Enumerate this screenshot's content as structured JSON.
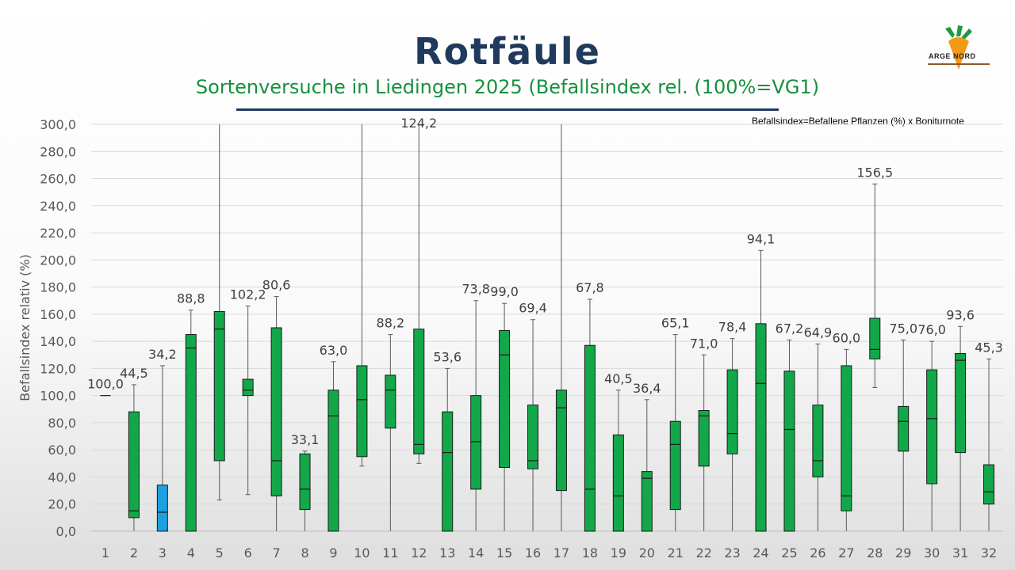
{
  "title": "Rotfäule",
  "subtitle": "Sortenversuche in Liedingen 2025 (Befallsindex rel. (100%=VG1)",
  "note": "Befallsindex=Befallene Pflanzen (%) x Boniturnote",
  "logo": {
    "text": "ARGE NORD",
    "icon": "carrot-logo-icon"
  },
  "colors": {
    "box": "#12a84a",
    "highlight": "#1ea0e0",
    "title": "#1f3a5c",
    "subtitle": "#17903f"
  },
  "chart_data": {
    "type": "boxplot",
    "ylabel": "Befallsindex relativ (%)",
    "xlabel": "",
    "ylim": [
      0,
      300
    ],
    "yticks": [
      "0,0",
      "20,0",
      "40,0",
      "60,0",
      "80,0",
      "100,0",
      "120,0",
      "140,0",
      "160,0",
      "180,0",
      "200,0",
      "220,0",
      "240,0",
      "260,0",
      "280,0",
      "300,0"
    ],
    "grid": true,
    "categories": [
      "1",
      "2",
      "3",
      "4",
      "5",
      "6",
      "7",
      "8",
      "9",
      "10",
      "11",
      "12",
      "13",
      "14",
      "15",
      "16",
      "17",
      "18",
      "19",
      "20",
      "21",
      "22",
      "23",
      "24",
      "25",
      "26",
      "27",
      "28",
      "29",
      "30",
      "31",
      "32"
    ],
    "highlight_category": "3",
    "boxes": [
      {
        "x": "1",
        "min": 100,
        "q1": 100,
        "median": 100,
        "q3": 100,
        "max": 100,
        "mean": "100,0"
      },
      {
        "x": "2",
        "min": 0,
        "q1": 10,
        "median": 15,
        "q3": 88,
        "max": 108,
        "mean": "44,5"
      },
      {
        "x": "3",
        "min": 0,
        "q1": 0,
        "median": 14,
        "q3": 34,
        "max": 122,
        "mean": "34,2"
      },
      {
        "x": "4",
        "min": 0,
        "q1": 0,
        "median": 135,
        "q3": 145,
        "max": 163,
        "mean": "88,8"
      },
      {
        "x": "5",
        "min": 23,
        "q1": 52,
        "median": 149,
        "q3": 162,
        "max": 300,
        "mean": ""
      },
      {
        "x": "6",
        "min": 27,
        "q1": 100,
        "median": 104,
        "q3": 112,
        "max": 166,
        "mean": "102,2"
      },
      {
        "x": "7",
        "min": 0,
        "q1": 26,
        "median": 52,
        "q3": 150,
        "max": 173,
        "mean": "80,6"
      },
      {
        "x": "8",
        "min": 0,
        "q1": 16,
        "median": 31,
        "q3": 57,
        "max": 59,
        "mean": "33,1"
      },
      {
        "x": "9",
        "min": 0,
        "q1": 0,
        "median": 85,
        "q3": 104,
        "max": 125,
        "mean": "63,0"
      },
      {
        "x": "10",
        "min": 48,
        "q1": 55,
        "median": 97,
        "q3": 122,
        "max": 300,
        "mean": ""
      },
      {
        "x": "11",
        "min": 0,
        "q1": 76,
        "median": 104,
        "q3": 115,
        "max": 145,
        "mean": "88,2"
      },
      {
        "x": "12",
        "min": 50,
        "q1": 57,
        "median": 64,
        "q3": 149,
        "max": 300,
        "mean": "124,2"
      },
      {
        "x": "13",
        "min": 0,
        "q1": 0,
        "median": 58,
        "q3": 88,
        "max": 120,
        "mean": "53,6"
      },
      {
        "x": "14",
        "min": 0,
        "q1": 31,
        "median": 66,
        "q3": 100,
        "max": 170,
        "mean": "73,8"
      },
      {
        "x": "15",
        "min": 0,
        "q1": 47,
        "median": 130,
        "q3": 148,
        "max": 168,
        "mean": "99,0"
      },
      {
        "x": "16",
        "min": 0,
        "q1": 46,
        "median": 52,
        "q3": 93,
        "max": 156,
        "mean": "69,4"
      },
      {
        "x": "17",
        "min": 0,
        "q1": 30,
        "median": 91,
        "q3": 104,
        "max": 300,
        "mean": ""
      },
      {
        "x": "18",
        "min": 0,
        "q1": 0,
        "median": 31,
        "q3": 137,
        "max": 171,
        "mean": "67,8"
      },
      {
        "x": "19",
        "min": 0,
        "q1": 0,
        "median": 26,
        "q3": 71,
        "max": 104,
        "mean": "40,5"
      },
      {
        "x": "20",
        "min": 0,
        "q1": 0,
        "median": 39,
        "q3": 44,
        "max": 97,
        "mean": "36,4"
      },
      {
        "x": "21",
        "min": 0,
        "q1": 16,
        "median": 64,
        "q3": 81,
        "max": 145,
        "mean": "65,1"
      },
      {
        "x": "22",
        "min": 0,
        "q1": 48,
        "median": 85,
        "q3": 89,
        "max": 130,
        "mean": "71,0"
      },
      {
        "x": "23",
        "min": 0,
        "q1": 57,
        "median": 72,
        "q3": 119,
        "max": 142,
        "mean": "78,4"
      },
      {
        "x": "24",
        "min": 0,
        "q1": 0,
        "median": 109,
        "q3": 153,
        "max": 207,
        "mean": "94,1"
      },
      {
        "x": "25",
        "min": 0,
        "q1": 0,
        "median": 75,
        "q3": 118,
        "max": 141,
        "mean": "67,2"
      },
      {
        "x": "26",
        "min": 0,
        "q1": 40,
        "median": 52,
        "q3": 93,
        "max": 138,
        "mean": "64,9"
      },
      {
        "x": "27",
        "min": 0,
        "q1": 15,
        "median": 26,
        "q3": 122,
        "max": 134,
        "mean": "60,0"
      },
      {
        "x": "28",
        "min": 106,
        "q1": 127,
        "median": 134,
        "q3": 157,
        "max": 256,
        "mean": "156,5"
      },
      {
        "x": "29",
        "min": 0,
        "q1": 59,
        "median": 81,
        "q3": 92,
        "max": 141,
        "mean": "75,0"
      },
      {
        "x": "30",
        "min": 0,
        "q1": 35,
        "median": 83,
        "q3": 119,
        "max": 140,
        "mean": "76,0"
      },
      {
        "x": "31",
        "min": 0,
        "q1": 58,
        "median": 126,
        "q3": 131,
        "max": 151,
        "mean": "93,6"
      },
      {
        "x": "32",
        "min": 0,
        "q1": 20,
        "median": 29,
        "q3": 49,
        "max": 127,
        "mean": "45,3"
      }
    ]
  }
}
